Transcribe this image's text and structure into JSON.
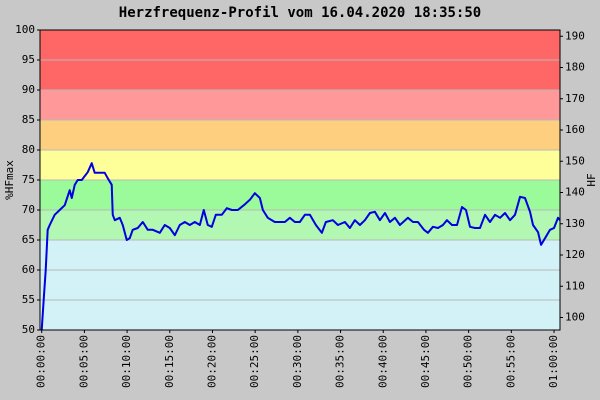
{
  "chart_data": {
    "type": "line",
    "title": "Herzfrequenz-Profil vom 16.04.2020 18:35:50",
    "y_label": "%HFmax",
    "y2_label": "HF",
    "x": [
      0,
      0.23,
      0.47,
      0.7,
      0.94,
      1.52,
      2.11,
      2.7,
      3.28,
      3.52,
      3.87,
      4.22,
      4.69,
      5.39,
      5.86,
      6.21,
      7.38,
      7.73,
      8.2,
      8.32,
      8.56,
      9.14,
      9.49,
      9.96,
      10.31,
      10.66,
      11.25,
      11.84,
      12.42,
      13.01,
      13.83,
      14.41,
      15.0,
      15.59,
      16.17,
      16.76,
      17.34,
      17.93,
      18.52,
      18.98,
      19.45,
      19.92,
      20.39,
      21.09,
      21.68,
      22.27,
      22.97,
      23.67,
      24.38,
      24.96,
      25.55,
      25.9,
      26.48,
      27.3,
      28.48,
      29.06,
      29.65,
      30.23,
      30.82,
      31.41,
      32.11,
      32.81,
      33.28,
      34.1,
      34.69,
      35.51,
      36.09,
      36.68,
      37.27,
      37.85,
      38.44,
      39.02,
      39.61,
      40.2,
      40.78,
      41.37,
      41.95,
      42.89,
      43.48,
      44.06,
      44.77,
      45.23,
      45.82,
      46.41,
      46.99,
      47.46,
      48.05,
      48.64,
      49.22,
      49.69,
      50.16,
      50.75,
      51.33,
      51.92,
      52.5,
      53.09,
      53.68,
      54.26,
      54.85,
      55.43,
      56.02,
      56.6,
      57.19,
      57.54,
      58.13,
      58.48,
      58.95,
      59.53,
      60.0,
      60.47,
      60.7
    ],
    "series": [
      {
        "name": "HF",
        "color": "#0000e0",
        "values": [
          50,
          55,
          60,
          66.7,
          67.5,
          69.2,
          70,
          70.8,
          73.3,
          72,
          74.2,
          75,
          75,
          76.3,
          77.8,
          76.2,
          76.2,
          75.3,
          74.2,
          69.2,
          68.3,
          68.7,
          67.5,
          65,
          65.3,
          66.7,
          67,
          68,
          66.7,
          66.7,
          66.2,
          67.5,
          67,
          65.8,
          67.5,
          68,
          67.5,
          68,
          67.5,
          70,
          67.5,
          67.2,
          69.2,
          69.2,
          70.3,
          70,
          70,
          70.8,
          71.7,
          72.8,
          72,
          70,
          68.7,
          68,
          68,
          68.7,
          68,
          68,
          69.2,
          69.2,
          67.5,
          66.2,
          68,
          68.3,
          67.5,
          68,
          67,
          68.3,
          67.5,
          68.3,
          69.5,
          69.7,
          68.3,
          69.5,
          68,
          68.7,
          67.5,
          68.7,
          68,
          68,
          66.7,
          66.2,
          67.2,
          67,
          67.5,
          68.3,
          67.5,
          67.5,
          70.5,
          70,
          67.2,
          67,
          67,
          69.2,
          68,
          69.2,
          68.7,
          69.5,
          68.3,
          69.2,
          72.2,
          72,
          69.7,
          67.5,
          66.3,
          64.2,
          65.3,
          66.7,
          67,
          68.7,
          68.3
        ]
      }
    ],
    "xlim": [
      -0.2,
      60.7
    ],
    "xticks": [
      {
        "value": 0,
        "label": "00:00:00"
      },
      {
        "value": 5,
        "label": "00:05:00"
      },
      {
        "value": 10,
        "label": "00:10:00"
      },
      {
        "value": 15,
        "label": "00:15:00"
      },
      {
        "value": 20,
        "label": "00:20:00"
      },
      {
        "value": 25,
        "label": "00:25:00"
      },
      {
        "value": 30,
        "label": "00:30:00"
      },
      {
        "value": 35,
        "label": "00:35:00"
      },
      {
        "value": 40,
        "label": "00:40:00"
      },
      {
        "value": 45,
        "label": "00:45:00"
      },
      {
        "value": 50,
        "label": "00:50:00"
      },
      {
        "value": 55,
        "label": "00:55:00"
      },
      {
        "value": 60,
        "label": "01:00:00"
      }
    ],
    "ylim": [
      50,
      100
    ],
    "yticks": [
      50,
      55,
      60,
      65,
      70,
      75,
      80,
      85,
      90,
      95,
      100
    ],
    "y2lim": [
      96,
      192
    ],
    "y2ticks": [
      100,
      110,
      120,
      130,
      140,
      150,
      160,
      170,
      180,
      190
    ],
    "grid": true,
    "zones": [
      {
        "from": 50,
        "to": 65,
        "color": "#d2f2f8"
      },
      {
        "from": 65,
        "to": 70,
        "color": "#b2f7b2"
      },
      {
        "from": 70,
        "to": 75,
        "color": "#9bfb9b"
      },
      {
        "from": 75,
        "to": 80,
        "color": "#ffff99"
      },
      {
        "from": 80,
        "to": 85,
        "color": "#ffcf80"
      },
      {
        "from": 85,
        "to": 90,
        "color": "#ff9999"
      },
      {
        "from": 90,
        "to": 100,
        "color": "#ff6666"
      }
    ]
  }
}
